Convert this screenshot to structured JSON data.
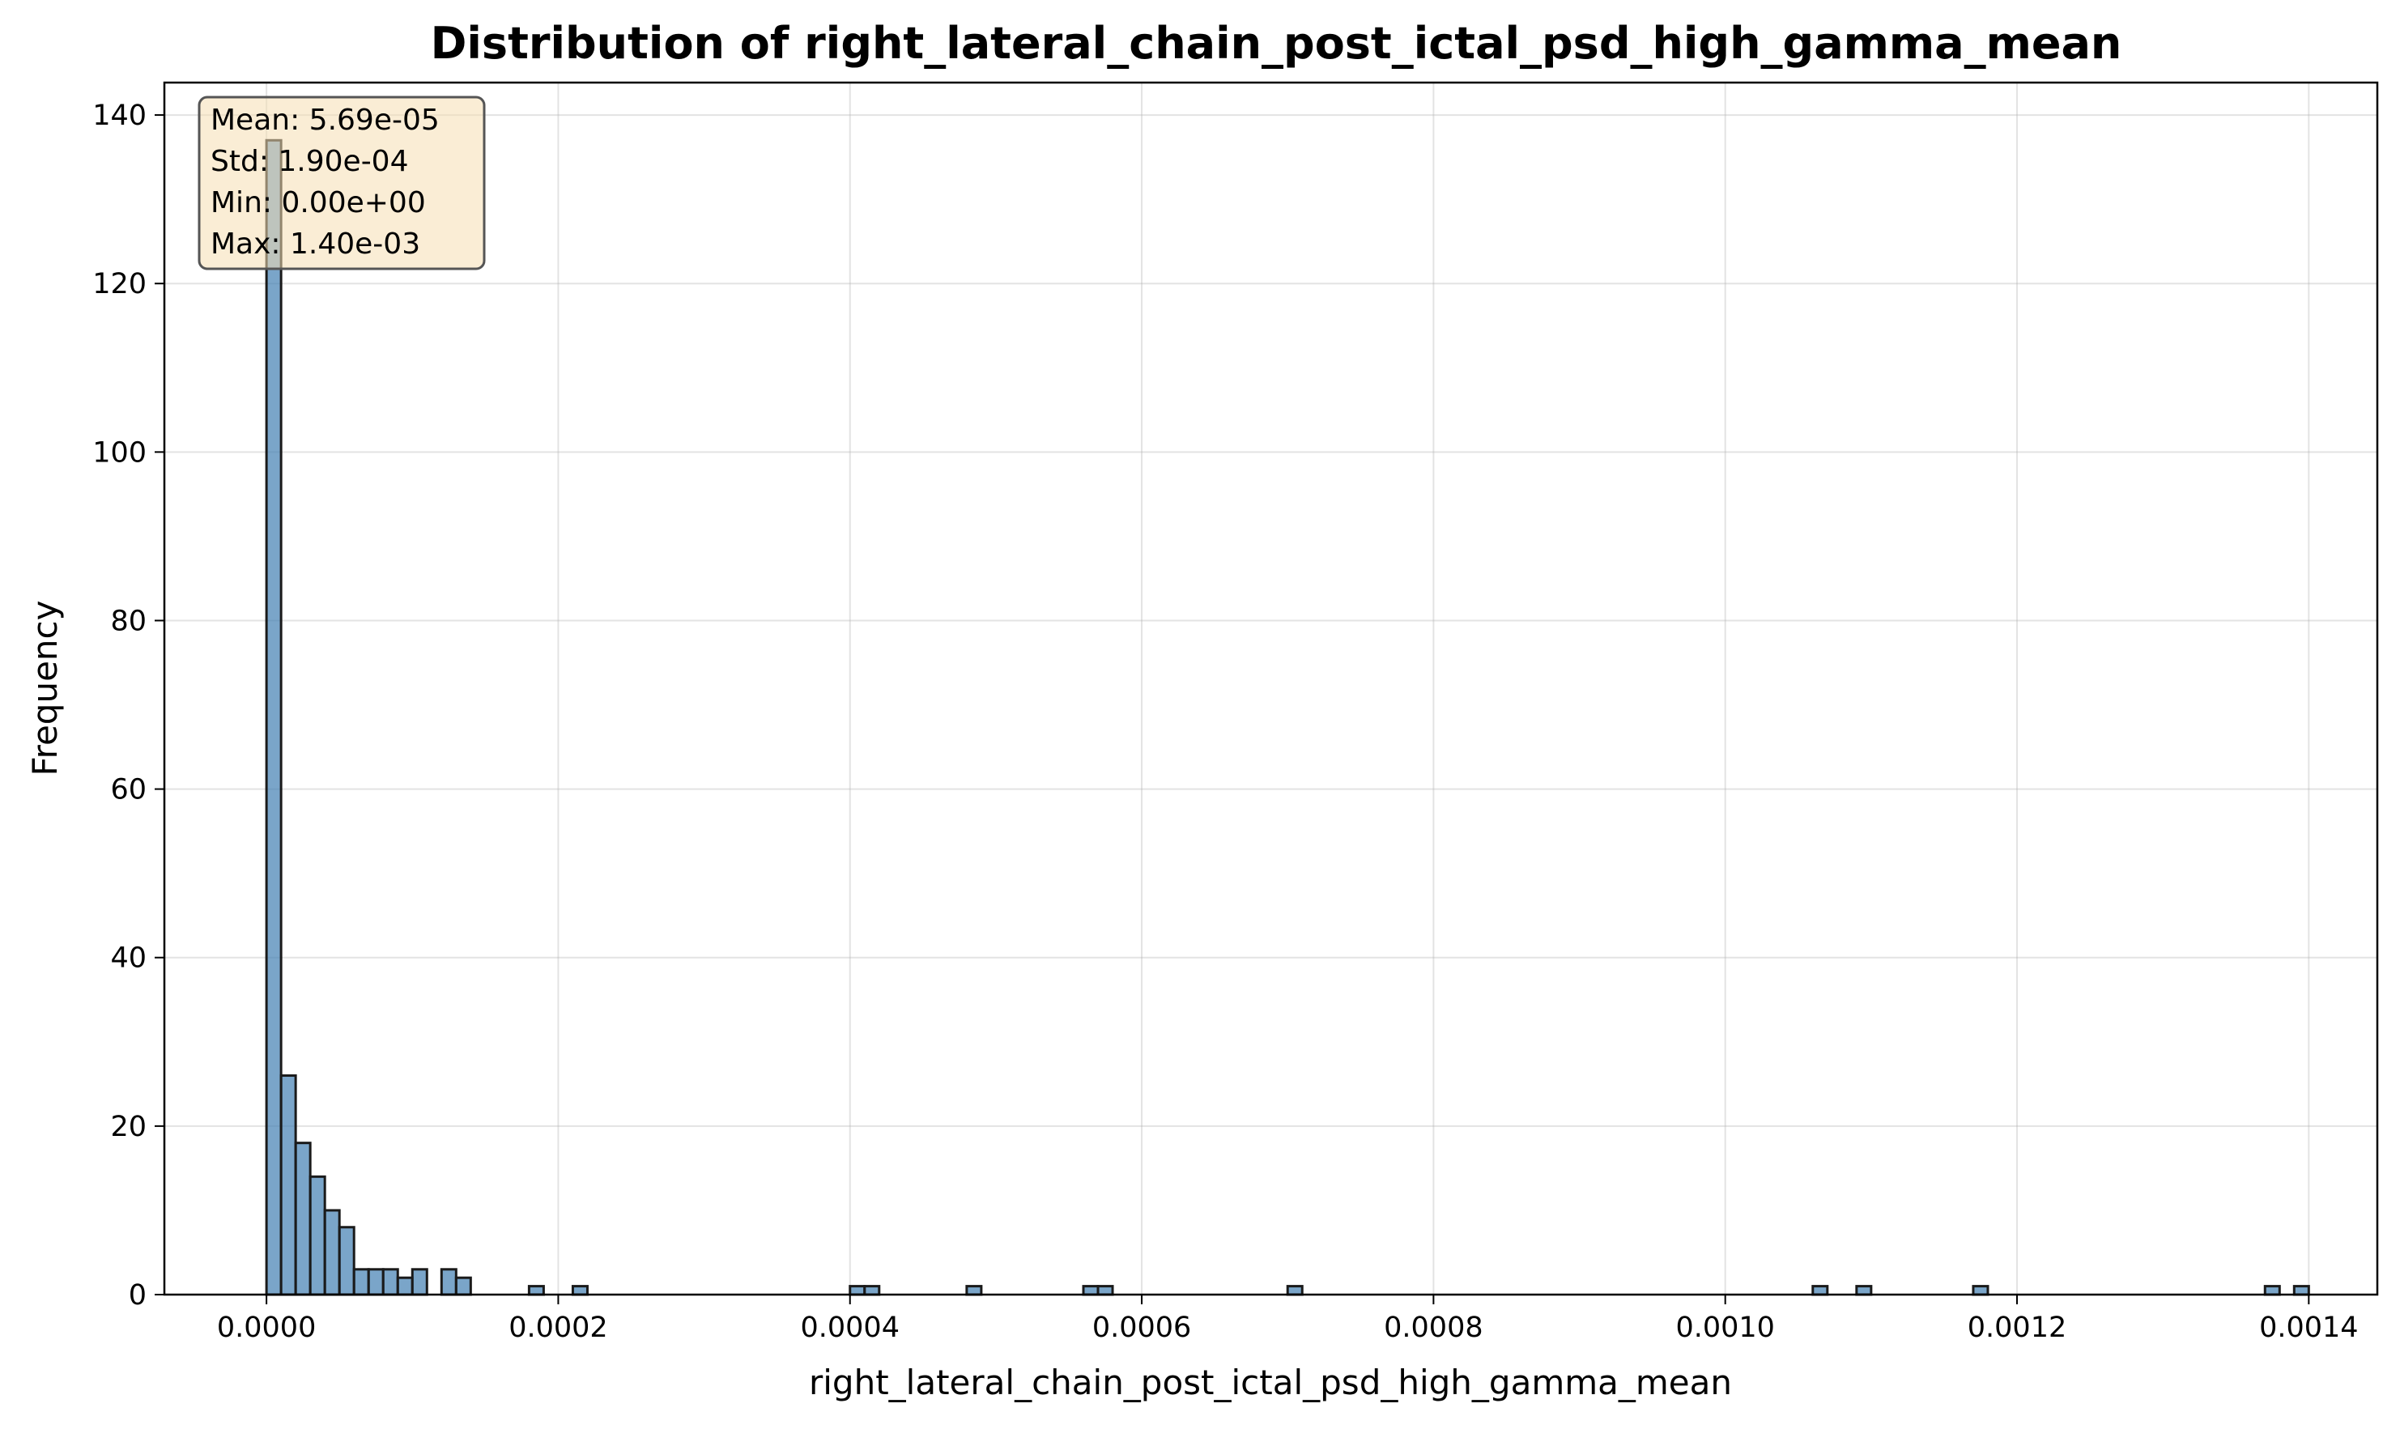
{
  "chart_data": {
    "type": "bar",
    "title": "Distribution of right_lateral_chain_post_ictal_psd_high_gamma_mean",
    "xlabel": "right_lateral_chain_post_ictal_psd_high_gamma_mean",
    "ylabel": "Frequency",
    "xlim": [
      -7e-05,
      0.001447
    ],
    "ylim": [
      0,
      143.85
    ],
    "grid": true,
    "bar_color": "#4682b4",
    "bar_edge_color": "#1a1a1a",
    "bin_width": 1e-05,
    "bins": [
      {
        "x": 0.0,
        "value": 137
      },
      {
        "x": 1e-05,
        "value": 26
      },
      {
        "x": 2e-05,
        "value": 18
      },
      {
        "x": 3e-05,
        "value": 14
      },
      {
        "x": 4e-05,
        "value": 10
      },
      {
        "x": 5e-05,
        "value": 8
      },
      {
        "x": 6e-05,
        "value": 3
      },
      {
        "x": 7e-05,
        "value": 3
      },
      {
        "x": 8e-05,
        "value": 3
      },
      {
        "x": 9e-05,
        "value": 2
      },
      {
        "x": 0.0001,
        "value": 3
      },
      {
        "x": 0.00012,
        "value": 3
      },
      {
        "x": 0.00013,
        "value": 2
      },
      {
        "x": 0.00018,
        "value": 1
      },
      {
        "x": 0.00021,
        "value": 1
      },
      {
        "x": 0.0004,
        "value": 1
      },
      {
        "x": 0.00041,
        "value": 1
      },
      {
        "x": 0.00048,
        "value": 1
      },
      {
        "x": 0.00056,
        "value": 1
      },
      {
        "x": 0.00057,
        "value": 1
      },
      {
        "x": 0.0007,
        "value": 1
      },
      {
        "x": 0.00106,
        "value": 1
      },
      {
        "x": 0.00109,
        "value": 1
      },
      {
        "x": 0.00117,
        "value": 1
      },
      {
        "x": 0.00137,
        "value": 1
      },
      {
        "x": 0.00139,
        "value": 1
      }
    ],
    "x_ticks": [
      {
        "value": 0.0,
        "label": "0.0000"
      },
      {
        "value": 0.0002,
        "label": "0.0002"
      },
      {
        "value": 0.0004,
        "label": "0.0004"
      },
      {
        "value": 0.0006,
        "label": "0.0006"
      },
      {
        "value": 0.0008,
        "label": "0.0008"
      },
      {
        "value": 0.001,
        "label": "0.0010"
      },
      {
        "value": 0.0012,
        "label": "0.0012"
      },
      {
        "value": 0.0014,
        "label": "0.0014"
      }
    ],
    "y_ticks": [
      {
        "value": 0,
        "label": "0"
      },
      {
        "value": 20,
        "label": "20"
      },
      {
        "value": 40,
        "label": "40"
      },
      {
        "value": 60,
        "label": "60"
      },
      {
        "value": 80,
        "label": "80"
      },
      {
        "value": 100,
        "label": "100"
      },
      {
        "value": 120,
        "label": "120"
      },
      {
        "value": 140,
        "label": "140"
      }
    ],
    "stats_box": {
      "placement": "top-left",
      "lines": [
        "Mean: 5.69e-05",
        "Std: 1.90e-04",
        "Min: 0.00e+00",
        "Max: 1.40e-03"
      ],
      "background": "#f5deb3"
    }
  }
}
